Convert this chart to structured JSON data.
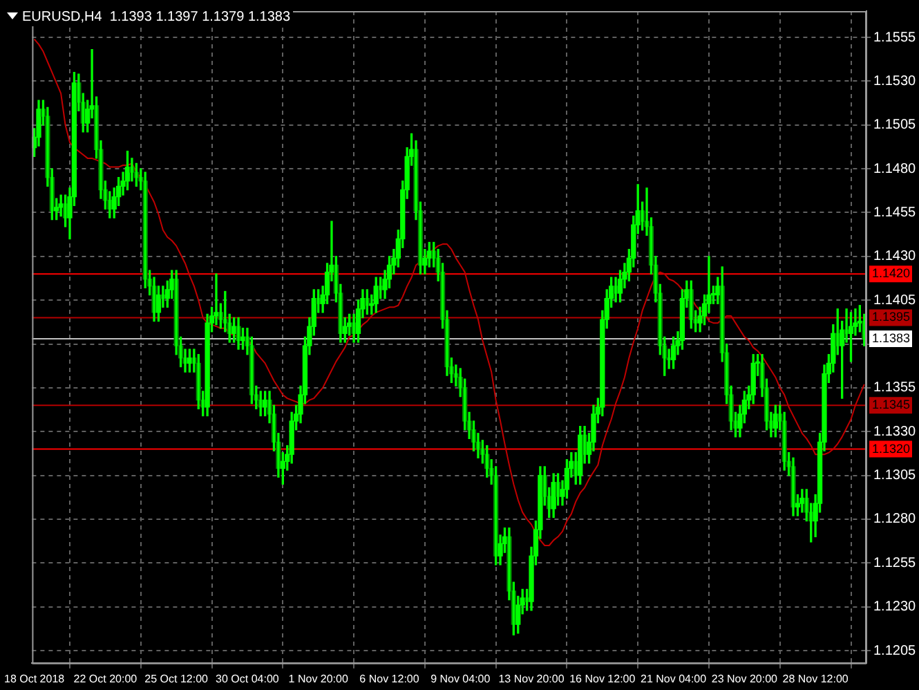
{
  "chart_data": {
    "type": "candlestick",
    "title": "EURUSD,H4  1.1393 1.1397 1.1379 1.1383",
    "color": "#00ff00",
    "grid": true,
    "ylim": [
      1.1198,
      1.157
    ],
    "yticks": [
      1.1205,
      {
        "value": 1.123,
        "label": "1.1230"
      },
      1.1255,
      {
        "value": 1.128,
        "label": "1.1280"
      },
      1.1305,
      {
        "value": 1.133,
        "label": "1.1330"
      },
      1.1355,
      {
        "value": 1.138,
        "label": null
      },
      1.1405,
      {
        "value": 1.143,
        "label": "1.1430"
      },
      1.1455,
      {
        "value": 1.148,
        "label": "1.1480"
      },
      1.1505,
      {
        "value": 1.153,
        "label": "1.1530"
      },
      1.1555
    ],
    "colors": [
      "#00ff00",
      "#00ff00",
      "#008a00",
      "#008a00",
      "#008a00",
      "#00ff00",
      "#00ff00",
      "#008a00",
      "#00ff00",
      "#00ff00",
      "#008a00",
      "#008a00",
      "#00ff00",
      "#00ff00",
      "#008a00",
      "#008a00",
      "#008a00",
      "#008a00",
      "#00ff00",
      "#00ff00",
      "#00ff00",
      "#00ff00",
      "#008a00",
      "#008a00",
      "#008a00",
      "#008a00",
      "#008a00",
      "#008a00",
      "#00ff00",
      "#008a00",
      "#00ff00",
      "#00ff00",
      "#008a00",
      "#008a00",
      "#008a00",
      "#00ff00",
      "#008a00",
      "#008a00",
      "#008a00",
      "#00ff00",
      "#00ff00",
      "#00ff00",
      "#008a00",
      "#008a00",
      "#008a00",
      "#00ff00",
      "#008a00",
      "#00ff00",
      "#008a00",
      "#008a00",
      "#008a00",
      "#008a00",
      "#00ff00",
      "#008a00",
      "#008a00",
      "#008a00",
      "#00ff00",
      "#00ff00",
      "#00ff00",
      "#00ff00",
      "#00ff00",
      "#00ff00",
      "#00ff00",
      "#00ff00",
      "#008a00",
      "#00ff00",
      "#00ff00",
      "#00ff00",
      "#008a00",
      "#008a00",
      "#00ff00",
      "#00ff00",
      "#008a00",
      "#00ff00",
      "#00ff00",
      "#008a00",
      "#00ff00",
      "#00ff00",
      "#008a00",
      "#00ff00",
      "#00ff00",
      "#00ff00",
      "#00ff00",
      "#00ff00",
      "#00ff00",
      "#00ff00",
      "#008a00",
      "#008a00",
      "#00ff00",
      "#00ff00",
      "#008a00",
      "#008a00",
      "#008a00",
      "#008a00",
      "#008a00",
      "#008a00",
      "#008a00",
      "#008a00",
      "#008a00",
      "#008a00",
      "#008a00",
      "#008a00",
      "#008a00",
      "#008a00",
      "#008a00",
      "#00ff00",
      "#00ff00",
      "#008a00",
      "#008a00",
      "#00ff00",
      "#00ff00",
      "#008a00",
      "#00ff00",
      "#00ff00",
      "#00ff00",
      "#008a00",
      "#008a00",
      "#00ff00",
      "#008a00",
      "#00ff00",
      "#00ff00",
      "#00ff00",
      "#008a00",
      "#00ff00",
      "#008a00",
      "#00ff00",
      "#00ff00",
      "#00ff00",
      "#00ff00",
      "#00ff00",
      "#00ff00",
      "#008a00",
      "#00ff00",
      "#00ff00",
      "#00ff00",
      "#00ff00",
      "#00ff00",
      "#008a00",
      "#008a00",
      "#008a00",
      "#008a00",
      "#008a00",
      "#008a00",
      "#008a00",
      "#00ff00",
      "#00ff00",
      "#00ff00",
      "#00ff00",
      "#008a00",
      "#008a00",
      "#00ff00",
      "#00ff00",
      "#00ff00",
      "#00ff00",
      "#00ff00",
      "#008a00",
      "#008a00",
      "#008a00",
      "#008a00",
      "#00ff00",
      "#00ff00",
      "#00ff00",
      "#00ff00",
      "#00ff00",
      "#008a00",
      "#008a00",
      "#008a00",
      "#00ff00",
      "#008a00",
      "#008a00",
      "#008a00",
      "#008a00",
      "#00ff00",
      "#00ff00",
      "#008a00",
      "#008a00",
      "#00ff00",
      "#00ff00",
      "#00ff00",
      "#00ff00",
      "#00ff00",
      "#008a00",
      "#00ff00",
      "#008a00",
      "#00ff00",
      "#00ff00",
      "#00ff00",
      "#008a00"
    ],
    "categories": [
      "18 Oct 2018",
      null,
      null,
      null,
      null,
      null,
      null,
      null,
      null,
      null,
      null,
      null,
      null,
      null,
      null,
      null,
      "22 Oct 20:00",
      null,
      null,
      null,
      null,
      null,
      null,
      null,
      null,
      null,
      null,
      null,
      null,
      null,
      null,
      null,
      "25 Oct 12:00",
      null,
      null,
      null,
      null,
      null,
      null,
      null,
      null,
      null,
      null,
      null,
      null,
      null,
      null,
      null,
      "30 Oct 04:00",
      null,
      null,
      null,
      null,
      null,
      null,
      null,
      null,
      null,
      null,
      null,
      null,
      null,
      null,
      null,
      "1 Nov 20:00",
      null,
      null,
      null,
      null,
      null,
      null,
      null,
      null,
      null,
      null,
      null,
      null,
      null,
      null,
      null,
      "6 Nov 12:00",
      null,
      null,
      null,
      null,
      null,
      null,
      null,
      null,
      null,
      null,
      null,
      null,
      null,
      null,
      null,
      "9 Nov 04:00",
      null,
      null,
      null,
      null,
      null,
      null,
      null,
      null,
      null,
      null,
      null,
      null,
      null,
      null,
      null,
      "13 Nov 20:00",
      null,
      null,
      null,
      null,
      null,
      null,
      null,
      null,
      null,
      null,
      null,
      null,
      null,
      null,
      null,
      "16 Nov 12:00",
      null,
      null,
      null,
      null,
      null,
      null,
      null,
      null,
      null,
      null,
      null,
      null,
      null,
      null,
      null,
      "21 Nov 04:00",
      null,
      null,
      null,
      null,
      null,
      null,
      null,
      null,
      null,
      null,
      null,
      null,
      null,
      null,
      null,
      "23 Nov 20:00",
      null,
      null,
      null,
      null,
      null,
      null,
      null,
      null,
      null,
      null,
      null,
      null,
      null,
      null,
      null,
      "28 Nov 12:00",
      null,
      null,
      null,
      null,
      null,
      null,
      null,
      null,
      null,
      null,
      null
    ],
    "ohlc": [
      [
        1.1492,
        1.1503,
        1.1487,
        1.1498
      ],
      [
        1.1498,
        1.1519,
        1.1493,
        1.1514
      ],
      [
        1.1514,
        1.1519,
        1.1505,
        1.151
      ],
      [
        1.151,
        1.1515,
        1.147,
        1.1475
      ],
      [
        1.1475,
        1.148,
        1.1451,
        1.1456
      ],
      [
        1.1456,
        1.1463,
        1.1451,
        1.1458
      ],
      [
        1.1458,
        1.1465,
        1.1453,
        1.146
      ],
      [
        1.146,
        1.1465,
        1.1447,
        1.1452
      ],
      [
        1.1452,
        1.1469,
        1.144,
        1.1464
      ],
      [
        1.1464,
        1.1535,
        1.1459,
        1.1529
      ],
      [
        1.1529,
        1.1534,
        1.1513,
        1.1518
      ],
      [
        1.1518,
        1.1523,
        1.1501,
        1.1506
      ],
      [
        1.1506,
        1.1519,
        1.1501,
        1.1514
      ],
      [
        1.1514,
        1.1548,
        1.1509,
        1.1516
      ],
      [
        1.1516,
        1.1521,
        1.1486,
        1.1491
      ],
      [
        1.1491,
        1.1496,
        1.1463,
        1.1468
      ],
      [
        1.1468,
        1.1473,
        1.1457,
        1.1462
      ],
      [
        1.1462,
        1.1467,
        1.1452,
        1.1457
      ],
      [
        1.1457,
        1.1469,
        1.1452,
        1.1464
      ],
      [
        1.1464,
        1.1475,
        1.1459,
        1.147
      ],
      [
        1.147,
        1.1478,
        1.1465,
        1.1473
      ],
      [
        1.1473,
        1.149,
        1.1468,
        1.1481
      ],
      [
        1.1481,
        1.1486,
        1.1473,
        1.1478
      ],
      [
        1.1478,
        1.1483,
        1.147,
        1.1475
      ],
      [
        1.1475,
        1.148,
        1.1468,
        1.1473
      ],
      [
        1.1473,
        1.1478,
        1.1412,
        1.1417
      ],
      [
        1.1417,
        1.1422,
        1.1408,
        1.1413
      ],
      [
        1.1413,
        1.1418,
        1.1393,
        1.1398
      ],
      [
        1.1398,
        1.1413,
        1.1393,
        1.1408
      ],
      [
        1.1408,
        1.1413,
        1.1401,
        1.1406
      ],
      [
        1.1406,
        1.1416,
        1.1401,
        1.1411
      ],
      [
        1.1411,
        1.1422,
        1.1406,
        1.1417
      ],
      [
        1.1417,
        1.1422,
        1.1374,
        1.1379
      ],
      [
        1.1379,
        1.1384,
        1.1367,
        1.1372
      ],
      [
        1.1372,
        1.1377,
        1.1364,
        1.1369
      ],
      [
        1.1369,
        1.1377,
        1.1364,
        1.1372
      ],
      [
        1.1372,
        1.1377,
        1.1364,
        1.1369
      ],
      [
        1.1369,
        1.1374,
        1.1343,
        1.1348
      ],
      [
        1.1348,
        1.1353,
        1.1339,
        1.1344
      ],
      [
        1.1344,
        1.1397,
        1.1339,
        1.1392
      ],
      [
        1.1392,
        1.1401,
        1.1387,
        1.1396
      ],
      [
        1.1396,
        1.142,
        1.1391,
        1.1398
      ],
      [
        1.1398,
        1.1403,
        1.1389,
        1.1394
      ],
      [
        1.1394,
        1.141,
        1.1387,
        1.1392
      ],
      [
        1.1392,
        1.1397,
        1.1381,
        1.1386
      ],
      [
        1.1386,
        1.1395,
        1.1381,
        1.139
      ],
      [
        1.139,
        1.1395,
        1.1377,
        1.1382
      ],
      [
        1.1382,
        1.1389,
        1.1377,
        1.1384
      ],
      [
        1.1384,
        1.1389,
        1.1374,
        1.1379
      ],
      [
        1.1379,
        1.1384,
        1.1346,
        1.1351
      ],
      [
        1.1351,
        1.1356,
        1.1343,
        1.1348
      ],
      [
        1.1348,
        1.1353,
        1.1339,
        1.1344
      ],
      [
        1.1344,
        1.1353,
        1.1339,
        1.1348
      ],
      [
        1.1348,
        1.1353,
        1.1335,
        1.134
      ],
      [
        1.134,
        1.1345,
        1.1319,
        1.1324
      ],
      [
        1.1324,
        1.1329,
        1.1304,
        1.1309
      ],
      [
        1.1309,
        1.1318,
        1.13,
        1.1313
      ],
      [
        1.1313,
        1.1322,
        1.1308,
        1.1317
      ],
      [
        1.1317,
        1.1341,
        1.1312,
        1.1336
      ],
      [
        1.1336,
        1.1345,
        1.1331,
        1.134
      ],
      [
        1.134,
        1.1356,
        1.1335,
        1.1351
      ],
      [
        1.1351,
        1.1384,
        1.1346,
        1.1379
      ],
      [
        1.1379,
        1.1395,
        1.1374,
        1.139
      ],
      [
        1.139,
        1.1411,
        1.1385,
        1.1406
      ],
      [
        1.1406,
        1.1411,
        1.1398,
        1.1403
      ],
      [
        1.1403,
        1.1413,
        1.1398,
        1.1408
      ],
      [
        1.1408,
        1.1426,
        1.1403,
        1.1421
      ],
      [
        1.1421,
        1.145,
        1.1416,
        1.1425
      ],
      [
        1.1425,
        1.143,
        1.1404,
        1.1409
      ],
      [
        1.1409,
        1.1414,
        1.1381,
        1.1386
      ],
      [
        1.1386,
        1.1395,
        1.1381,
        1.139
      ],
      [
        1.139,
        1.1397,
        1.1385,
        1.1392
      ],
      [
        1.1392,
        1.1397,
        1.1381,
        1.1386
      ],
      [
        1.1386,
        1.1405,
        1.1381,
        1.14
      ],
      [
        1.14,
        1.1411,
        1.1395,
        1.1406
      ],
      [
        1.1406,
        1.1411,
        1.1397,
        1.1402
      ],
      [
        1.1402,
        1.1408,
        1.1397,
        1.1403
      ],
      [
        1.1403,
        1.1418,
        1.1398,
        1.1413
      ],
      [
        1.1413,
        1.1418,
        1.1406,
        1.1411
      ],
      [
        1.1411,
        1.1422,
        1.1406,
        1.1417
      ],
      [
        1.1417,
        1.143,
        1.1412,
        1.1425
      ],
      [
        1.1425,
        1.1434,
        1.142,
        1.1429
      ],
      [
        1.1429,
        1.1445,
        1.1424,
        1.144
      ],
      [
        1.144,
        1.1473,
        1.1435,
        1.1468
      ],
      [
        1.1468,
        1.1492,
        1.1463,
        1.1487
      ],
      [
        1.1487,
        1.15,
        1.1482,
        1.1491
      ],
      [
        1.1491,
        1.1496,
        1.1451,
        1.1456
      ],
      [
        1.1456,
        1.1461,
        1.142,
        1.1425
      ],
      [
        1.1425,
        1.1434,
        1.142,
        1.1429
      ],
      [
        1.1429,
        1.1438,
        1.1424,
        1.1433
      ],
      [
        1.1433,
        1.1438,
        1.1424,
        1.1429
      ],
      [
        1.1429,
        1.1434,
        1.1416,
        1.1421
      ],
      [
        1.1421,
        1.1426,
        1.1389,
        1.1394
      ],
      [
        1.1394,
        1.1399,
        1.1362,
        1.1367
      ],
      [
        1.1367,
        1.1372,
        1.1358,
        1.1363
      ],
      [
        1.1363,
        1.1368,
        1.1356,
        1.1361
      ],
      [
        1.1361,
        1.1366,
        1.135,
        1.1355
      ],
      [
        1.1355,
        1.136,
        1.1331,
        1.1336
      ],
      [
        1.1336,
        1.1341,
        1.1326,
        1.1331
      ],
      [
        1.1331,
        1.1336,
        1.1319,
        1.1324
      ],
      [
        1.1324,
        1.1329,
        1.1315,
        1.132
      ],
      [
        1.132,
        1.1325,
        1.1312,
        1.1317
      ],
      [
        1.1317,
        1.1322,
        1.1304,
        1.1309
      ],
      [
        1.1309,
        1.1314,
        1.13,
        1.1305
      ],
      [
        1.1305,
        1.131,
        1.1254,
        1.1259
      ],
      [
        1.1259,
        1.1271,
        1.1254,
        1.1266
      ],
      [
        1.1266,
        1.1275,
        1.1261,
        1.127
      ],
      [
        1.127,
        1.1275,
        1.1234,
        1.1239
      ],
      [
        1.1239,
        1.1244,
        1.1214,
        1.122
      ],
      [
        1.122,
        1.1236,
        1.1215,
        1.1231
      ],
      [
        1.1231,
        1.124,
        1.1226,
        1.1235
      ],
      [
        1.1235,
        1.124,
        1.1228,
        1.1233
      ],
      [
        1.1233,
        1.1264,
        1.1228,
        1.1259
      ],
      [
        1.1259,
        1.1279,
        1.1254,
        1.1274
      ],
      [
        1.1274,
        1.131,
        1.1269,
        1.1305
      ],
      [
        1.1305,
        1.131,
        1.1288,
        1.1293
      ],
      [
        1.1293,
        1.1298,
        1.1281,
        1.1286
      ],
      [
        1.1286,
        1.1306,
        1.1281,
        1.1301
      ],
      [
        1.1301,
        1.1306,
        1.1288,
        1.1293
      ],
      [
        1.1293,
        1.1302,
        1.1288,
        1.1297
      ],
      [
        1.1297,
        1.1314,
        1.1292,
        1.1309
      ],
      [
        1.1309,
        1.1318,
        1.1304,
        1.1313
      ],
      [
        1.1313,
        1.1318,
        1.13,
        1.1305
      ],
      [
        1.1305,
        1.1333,
        1.13,
        1.1328
      ],
      [
        1.1328,
        1.1333,
        1.1312,
        1.1317
      ],
      [
        1.1317,
        1.1329,
        1.1312,
        1.1324
      ],
      [
        1.1324,
        1.1345,
        1.1319,
        1.134
      ],
      [
        1.134,
        1.1349,
        1.1335,
        1.1344
      ],
      [
        1.1344,
        1.1399,
        1.1339,
        1.1394
      ],
      [
        1.1394,
        1.1411,
        1.1389,
        1.1406
      ],
      [
        1.1406,
        1.1418,
        1.1401,
        1.1413
      ],
      [
        1.1413,
        1.1418,
        1.1404,
        1.1409
      ],
      [
        1.1409,
        1.1422,
        1.1404,
        1.1417
      ],
      [
        1.1417,
        1.1426,
        1.1412,
        1.1421
      ],
      [
        1.1421,
        1.1434,
        1.1416,
        1.1429
      ],
      [
        1.1429,
        1.1453,
        1.1424,
        1.1448
      ],
      [
        1.1448,
        1.1471,
        1.1443,
        1.1456
      ],
      [
        1.1456,
        1.1461,
        1.1445,
        1.145
      ],
      [
        1.145,
        1.1469,
        1.1442,
        1.1447
      ],
      [
        1.1447,
        1.1452,
        1.142,
        1.1425
      ],
      [
        1.1425,
        1.143,
        1.1404,
        1.1409
      ],
      [
        1.1409,
        1.1414,
        1.1374,
        1.1379
      ],
      [
        1.1379,
        1.1384,
        1.1362,
        1.1372
      ],
      [
        1.1372,
        1.1377,
        1.1366,
        1.1371
      ],
      [
        1.1371,
        1.1384,
        1.1366,
        1.1379
      ],
      [
        1.1379,
        1.1387,
        1.1374,
        1.1382
      ],
      [
        1.1382,
        1.1411,
        1.1377,
        1.1406
      ],
      [
        1.1406,
        1.1416,
        1.1401,
        1.1411
      ],
      [
        1.1411,
        1.1416,
        1.1389,
        1.1394
      ],
      [
        1.1394,
        1.1399,
        1.1387,
        1.1392
      ],
      [
        1.1392,
        1.1401,
        1.1387,
        1.1396
      ],
      [
        1.1396,
        1.1408,
        1.1391,
        1.1403
      ],
      [
        1.1403,
        1.143,
        1.1398,
        1.1408
      ],
      [
        1.1408,
        1.1413,
        1.1403,
        1.1408
      ],
      [
        1.1408,
        1.1418,
        1.1403,
        1.1413
      ],
      [
        1.1413,
        1.1424,
        1.137,
        1.1375
      ],
      [
        1.1375,
        1.138,
        1.1346,
        1.1351
      ],
      [
        1.1351,
        1.1356,
        1.1331,
        1.1336
      ],
      [
        1.1336,
        1.1341,
        1.1327,
        1.1332
      ],
      [
        1.1332,
        1.1345,
        1.1327,
        1.134
      ],
      [
        1.134,
        1.1353,
        1.1335,
        1.1348
      ],
      [
        1.1348,
        1.1356,
        1.1343,
        1.1351
      ],
      [
        1.1351,
        1.1374,
        1.1346,
        1.1369
      ],
      [
        1.1369,
        1.1374,
        1.1362,
        1.1369
      ],
      [
        1.1369,
        1.1374,
        1.135,
        1.1355
      ],
      [
        1.1355,
        1.136,
        1.1331,
        1.1336
      ],
      [
        1.1336,
        1.1341,
        1.1327,
        1.1332
      ],
      [
        1.1332,
        1.1345,
        1.1327,
        1.134
      ],
      [
        1.134,
        1.1345,
        1.1331,
        1.1336
      ],
      [
        1.1336,
        1.1341,
        1.1308,
        1.1313
      ],
      [
        1.1313,
        1.1318,
        1.1305,
        1.131
      ],
      [
        1.131,
        1.1315,
        1.1282,
        1.1287
      ],
      [
        1.1287,
        1.1294,
        1.1282,
        1.1289
      ],
      [
        1.1289,
        1.1297,
        1.1284,
        1.1292
      ],
      [
        1.1292,
        1.1297,
        1.1279,
        1.1284
      ],
      [
        1.1284,
        1.1289,
        1.1267,
        1.1279
      ],
      [
        1.1279,
        1.1294,
        1.127,
        1.1289
      ],
      [
        1.1289,
        1.1329,
        1.1284,
        1.1324
      ],
      [
        1.1324,
        1.1368,
        1.1319,
        1.1363
      ],
      [
        1.1363,
        1.1374,
        1.1358,
        1.1369
      ],
      [
        1.1369,
        1.1391,
        1.1364,
        1.1386
      ],
      [
        1.1386,
        1.14,
        1.1374,
        1.1379
      ],
      [
        1.1379,
        1.1393,
        1.1349,
        1.1388
      ],
      [
        1.1388,
        1.14,
        1.1381,
        1.1386
      ],
      [
        1.1386,
        1.1398,
        1.137,
        1.139
      ],
      [
        1.139,
        1.14,
        1.1385,
        1.1392
      ],
      [
        1.1392,
        1.1402,
        1.1387,
        1.1393
      ],
      [
        1.1393,
        1.1397,
        1.1379,
        1.1383
      ]
    ],
    "series": [
      {
        "type": "line",
        "color": "#c00000",
        "values": [
          1.1554,
          1.1551,
          1.1547,
          1.1541,
          1.1535,
          1.1529,
          1.1523,
          1.1505,
          1.1495,
          1.1492,
          1.149,
          1.1488,
          1.1486,
          1.1486,
          1.1485,
          1.1484,
          1.1483,
          1.1481,
          1.1481,
          1.1481,
          1.1482,
          1.1482,
          1.1483,
          1.1478,
          1.1475,
          1.1471,
          1.1466,
          1.1461,
          1.1454,
          1.1445,
          1.1441,
          1.1439,
          1.1436,
          1.1431,
          1.1426,
          1.1419,
          1.1413,
          1.1405,
          1.1395,
          1.1392,
          1.1391,
          1.139,
          1.1389,
          1.1389,
          1.1386,
          1.1385,
          1.1384,
          1.1382,
          1.1382,
          1.138,
          1.1375,
          1.1372,
          1.1369,
          1.1364,
          1.1359,
          1.1355,
          1.1351,
          1.1349,
          1.1348,
          1.1347,
          1.1346,
          1.1346,
          1.1348,
          1.1349,
          1.1352,
          1.1355,
          1.136,
          1.1365,
          1.137,
          1.1374,
          1.1378,
          1.1384,
          1.1385,
          1.1388,
          1.1391,
          1.1393,
          1.1396,
          1.1398,
          1.1399,
          1.14,
          1.1401,
          1.1401,
          1.1402,
          1.1407,
          1.1413,
          1.1418,
          1.1425,
          1.1427,
          1.1429,
          1.1432,
          1.1434,
          1.1436,
          1.1437,
          1.1437,
          1.1434,
          1.1429,
          1.1425,
          1.1421,
          1.1411,
          1.1402,
          1.1394,
          1.1382,
          1.1373,
          1.1364,
          1.1348,
          1.1336,
          1.1323,
          1.1311,
          1.13,
          1.1291,
          1.1284,
          1.128,
          1.1277,
          1.1272,
          1.1268,
          1.1265,
          1.1265,
          1.1268,
          1.127,
          1.1273,
          1.1279,
          1.1283,
          1.129,
          1.1295,
          1.1298,
          1.1303,
          1.1307,
          1.1311,
          1.1322,
          1.133,
          1.1337,
          1.1346,
          1.1353,
          1.1361,
          1.1372,
          1.1381,
          1.1389,
          1.1399,
          1.1406,
          1.1413,
          1.1419,
          1.1421,
          1.142,
          1.1417,
          1.1416,
          1.1414,
          1.1411,
          1.1409,
          1.1406,
          1.1402,
          1.1399,
          1.1398,
          1.1393,
          1.1392,
          1.1392,
          1.1394,
          1.1396,
          1.1396,
          1.1392,
          1.1388,
          1.1384,
          1.1382,
          1.1378,
          1.1376,
          1.1373,
          1.1369,
          1.1365,
          1.1361,
          1.1355,
          1.1351,
          1.1344,
          1.1339,
          1.1334,
          1.1329,
          1.1326,
          1.1322,
          1.1317,
          1.1317,
          1.1317,
          1.1318,
          1.132,
          1.1323,
          1.1327,
          1.1332,
          1.1337,
          1.1345,
          1.1351,
          1.1357
        ]
      }
    ],
    "ref_lines": [
      {
        "axis": "y",
        "value": 1.142,
        "label": "1.1420",
        "color": "#ff0000"
      },
      {
        "axis": "y",
        "value": 1.1395,
        "label": "1.1395",
        "color": "#b40000"
      },
      {
        "axis": "y",
        "value": 1.1383,
        "label": "1.1383",
        "color": "#c0c0c0"
      },
      {
        "axis": "y",
        "value": 1.1345,
        "label": "1.1345",
        "color": "#b40000"
      },
      {
        "axis": "y",
        "value": 1.132,
        "label": "1.1320",
        "color": "#ff0000"
      }
    ]
  }
}
